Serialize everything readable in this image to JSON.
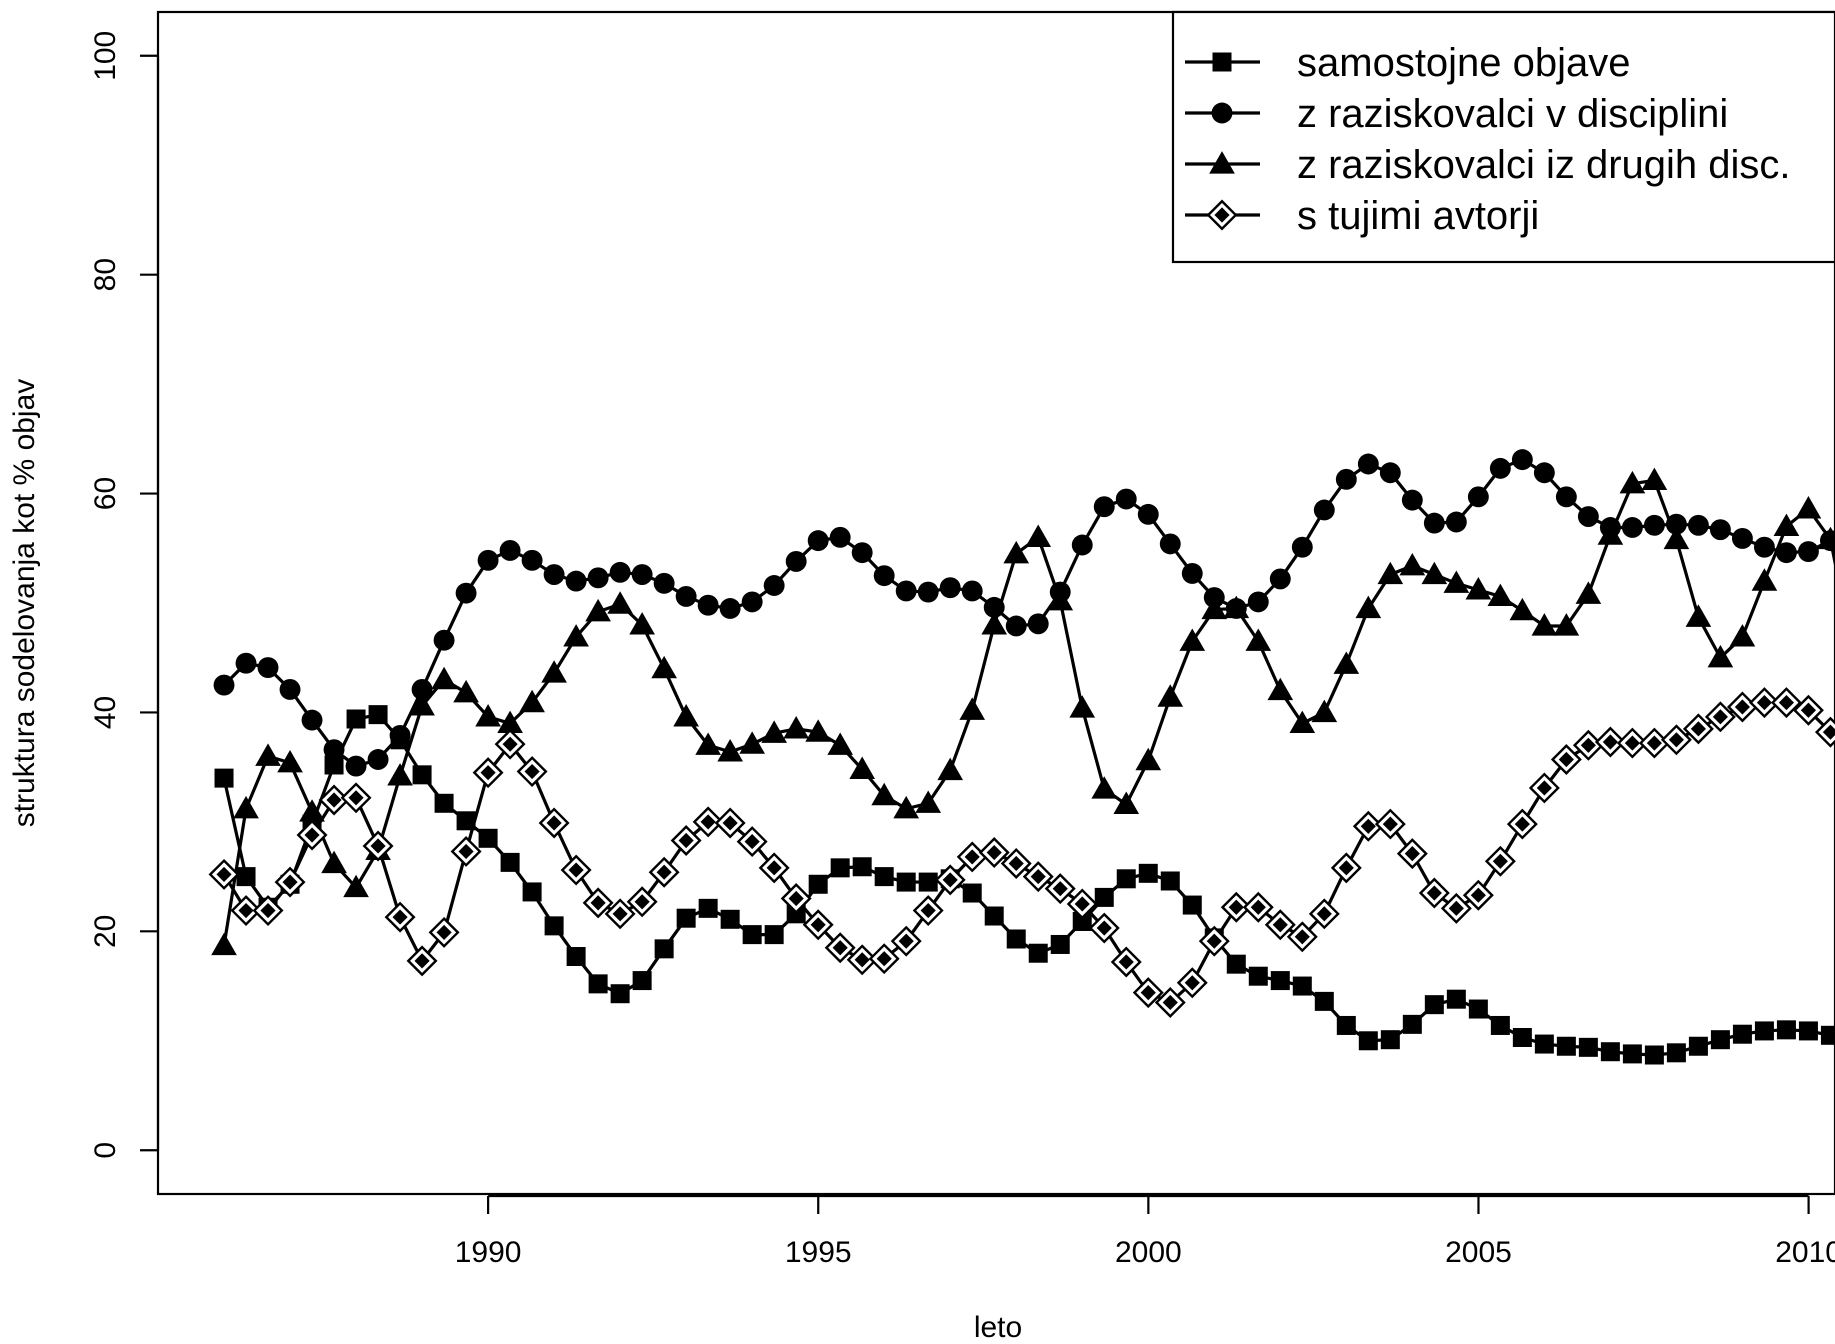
{
  "chart_data": {
    "type": "line",
    "title": "",
    "xlabel": "leto",
    "ylabel": "struktura sodelovanja kot % objav",
    "xlim": [
      1985.0,
      2010.4
    ],
    "ylim": [
      -4,
      104
    ],
    "x_ticks": [
      1990,
      1995,
      2000,
      2005,
      2010
    ],
    "x_tick_labels": [
      "1990",
      "1995",
      "2000",
      "2005",
      "2010"
    ],
    "y_ticks": [
      0,
      20,
      40,
      60,
      80,
      100
    ],
    "y_tick_labels": [
      "0",
      "20",
      "40",
      "60",
      "80",
      "100"
    ],
    "grid": false,
    "legend_position": "top-right",
    "x_start": 1986,
    "x_step": 0.3333,
    "series": [
      {
        "name": "samostojne objave",
        "marker": "square",
        "values": [
          34.0,
          25.0,
          22.2,
          24.3,
          29.8,
          35.2,
          39.4,
          39.8,
          37.5,
          34.3,
          31.7,
          30.1,
          28.5,
          26.3,
          23.6,
          20.5,
          17.7,
          15.2,
          14.3,
          15.5,
          18.4,
          21.2,
          22.1,
          21.1,
          19.7,
          19.7,
          21.6,
          24.3,
          25.8,
          25.9,
          25.0,
          24.5,
          24.5,
          24.8,
          23.5,
          21.4,
          19.3,
          18.0,
          18.8,
          20.9,
          23.1,
          24.8,
          25.3,
          24.6,
          22.4,
          19.4,
          17.0,
          15.9,
          15.5,
          15.0,
          13.6,
          11.4,
          10.0,
          10.1,
          11.5,
          13.3,
          13.8,
          12.9,
          11.4,
          10.3,
          9.7,
          9.5,
          9.4,
          9.0,
          8.8,
          8.7,
          8.9,
          9.5,
          10.1,
          10.6,
          10.9,
          11.0,
          10.9,
          10.5,
          9.4
        ]
      },
      {
        "name": "z raziskovalci v disciplini",
        "marker": "circle",
        "values": [
          42.5,
          44.5,
          44.1,
          42.1,
          39.3,
          36.6,
          35.1,
          35.7,
          37.9,
          42.1,
          46.6,
          50.9,
          53.9,
          54.8,
          53.9,
          52.6,
          52.0,
          52.3,
          52.8,
          52.6,
          51.8,
          50.6,
          49.8,
          49.5,
          50.1,
          51.6,
          53.8,
          55.7,
          56.0,
          54.6,
          52.5,
          51.1,
          51.0,
          51.4,
          51.1,
          49.6,
          47.9,
          48.1,
          51.0,
          55.3,
          58.8,
          59.5,
          58.1,
          55.4,
          52.7,
          50.5,
          49.5,
          50.1,
          52.2,
          55.1,
          58.5,
          61.3,
          62.7,
          61.9,
          59.4,
          57.3,
          57.4,
          59.7,
          62.3,
          63.1,
          61.9,
          59.7,
          57.9,
          56.9,
          56.9,
          57.1,
          57.2,
          57.1,
          56.7,
          55.9,
          55.1,
          54.6,
          54.7,
          55.7,
          57.6
        ]
      },
      {
        "name": "z raziskovalci iz drugih disc.",
        "marker": "triangle",
        "values": [
          18.7,
          31.2,
          36.0,
          35.4,
          30.9,
          26.2,
          24.0,
          27.4,
          34.2,
          40.6,
          43.0,
          41.8,
          39.6,
          39.0,
          40.9,
          43.6,
          46.9,
          49.2,
          49.9,
          48.0,
          44.0,
          39.6,
          37.0,
          36.4,
          37.1,
          38.1,
          38.5,
          38.2,
          37.0,
          34.8,
          32.4,
          31.2,
          31.7,
          34.7,
          40.2,
          48.0,
          54.5,
          56.0,
          50.2,
          40.4,
          33.0,
          31.6,
          35.6,
          41.4,
          46.5,
          49.4,
          49.5,
          46.5,
          42.0,
          39.0,
          40.0,
          44.4,
          49.5,
          52.6,
          53.4,
          52.6,
          51.8,
          51.2,
          50.6,
          49.3,
          47.9,
          47.9,
          50.8,
          56.2,
          60.9,
          61.2,
          55.8,
          48.7,
          45.0,
          46.9,
          52.0,
          57.0,
          58.6,
          55.8,
          45.8
        ]
      },
      {
        "name": "s tujimi avtorji",
        "marker": "diamond",
        "values": [
          25.2,
          21.9,
          21.9,
          24.5,
          28.8,
          32.0,
          32.2,
          27.8,
          21.3,
          17.3,
          19.9,
          27.3,
          34.5,
          37.1,
          34.6,
          29.9,
          25.6,
          22.6,
          21.6,
          22.7,
          25.4,
          28.3,
          30.0,
          29.9,
          28.2,
          25.8,
          23.0,
          20.6,
          18.5,
          17.4,
          17.5,
          19.1,
          21.9,
          24.7,
          26.8,
          27.2,
          26.2,
          25.0,
          23.9,
          22.5,
          20.3,
          17.2,
          14.4,
          13.5,
          15.3,
          19.1,
          22.2,
          22.2,
          20.6,
          19.5,
          21.6,
          25.8,
          29.6,
          29.8,
          27.1,
          23.5,
          22.1,
          23.3,
          26.4,
          29.8,
          33.1,
          35.7,
          37.0,
          37.3,
          37.2,
          37.2,
          37.5,
          38.5,
          39.6,
          40.5,
          40.9,
          40.9,
          40.2,
          38.2,
          35.2
        ]
      }
    ]
  }
}
